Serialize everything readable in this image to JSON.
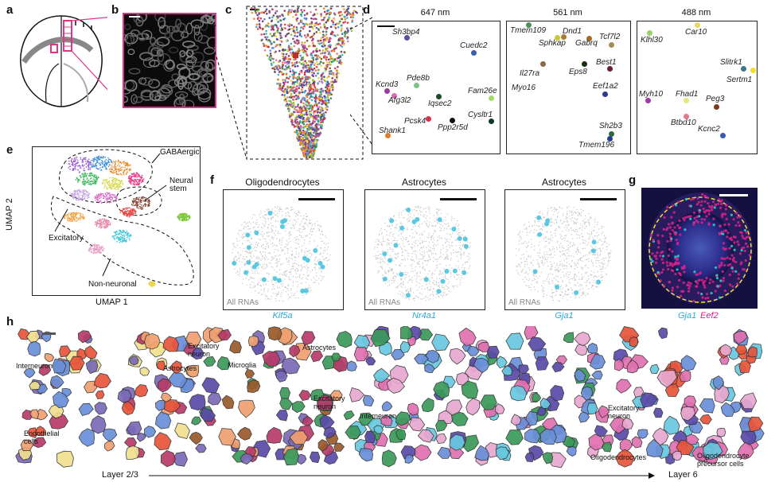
{
  "panels": {
    "a": "a",
    "b": "b",
    "c": "c",
    "d": "d",
    "e": "e",
    "f": "f",
    "g": "g",
    "h": "h"
  },
  "d": {
    "channels": [
      {
        "title": "647 nm",
        "genes": [
          {
            "name": "Sh3bp4",
            "color": "#5b4ea0"
          },
          {
            "name": "Cuedc2",
            "color": "#3b5fb0"
          },
          {
            "name": "Pde8b",
            "color": "#7cc48b"
          },
          {
            "name": "Kcnd3",
            "color": "#9a3b9c"
          },
          {
            "name": "Afg3l2",
            "color": "#d86cb2"
          },
          {
            "name": "Iqsec2",
            "color": "#1e4a2a"
          },
          {
            "name": "Fam26e",
            "color": "#a6d86a"
          },
          {
            "name": "Pcsk4",
            "color": "#d6334a"
          },
          {
            "name": "Ppp2r5d",
            "color": "#111111"
          },
          {
            "name": "Cysltr1",
            "color": "#0e3a2c"
          },
          {
            "name": "Shank1",
            "color": "#e07b2c"
          }
        ]
      },
      {
        "title": "561 nm",
        "genes": [
          {
            "name": "Tmem109",
            "color": "#4f8f5a"
          },
          {
            "name": "Dnd1",
            "color": "#b07a2c"
          },
          {
            "name": "Sphkap",
            "color": "#c6c83a"
          },
          {
            "name": "Gabrq",
            "color": "#a36a2a"
          },
          {
            "name": "Tcf7l2",
            "color": "#a38e56"
          },
          {
            "name": "Il27ra",
            "color": "#8a6a48"
          },
          {
            "name": "Eps8",
            "color": "#1a2e14"
          },
          {
            "name": "Best1",
            "color": "#6a1a3a"
          },
          {
            "name": "Myo16",
            "color": "#7a2a5a"
          },
          {
            "name": "Eef1a2",
            "color": "#2f3a8e"
          },
          {
            "name": "Sh2b3",
            "color": "#2e6a3a"
          },
          {
            "name": "Tmem196",
            "color": "#2a3a9a"
          }
        ]
      },
      {
        "title": "488 nm",
        "genes": [
          {
            "name": "Klhl30",
            "color": "#9cce6a"
          },
          {
            "name": "Car10",
            "color": "#e6d85a"
          },
          {
            "name": "Slitrk1",
            "color": "#3a7a8a"
          },
          {
            "name": "Sertm1",
            "color": "#f0e020"
          },
          {
            "name": "Myh10",
            "color": "#a03aa8"
          },
          {
            "name": "Fhad1",
            "color": "#e8e87a"
          },
          {
            "name": "Peg3",
            "color": "#7a3a1a"
          },
          {
            "name": "Btbd10",
            "color": "#e07a8a"
          },
          {
            "name": "Kcnc2",
            "color": "#3a5ab0"
          }
        ]
      }
    ]
  },
  "e": {
    "ylabel": "UMAP 2",
    "xlabel": "UMAP 1",
    "labels": {
      "gaba": "GABAergic",
      "neural_stem": "Neural\nstem",
      "excitatory": "Excitatory",
      "non_neuronal": "Non-neuronal"
    }
  },
  "f": {
    "titles": [
      "Oligodendrocytes",
      "Astrocytes",
      "Astrocytes"
    ],
    "all_rnas": "All RNAs",
    "genes": [
      "Kif5a",
      "Nr4a1",
      "Gja1"
    ]
  },
  "g": {
    "gene1": "Gja1",
    "gene2": "Eef2",
    "gene1_color": "#29a9d6",
    "gene2_color": "#d6228a"
  },
  "h": {
    "annotations": {
      "interneuron1": "Interneuron",
      "astrocytes1": "Astrocytes",
      "excitatory1": "Excitatory\nneuron",
      "microglia": "Microglia",
      "astrocytes2": "Astrocytes",
      "excitatory2": "Excitatory\nneuron",
      "endothelial": "Endothelial\ncells",
      "interneuron2": "Interneuron",
      "excitatory3": "Excitatory\nneuron",
      "oligodendrocytes": "Oligodendrocytes",
      "opc": "Oligodendrocyte\nprecursor cells"
    },
    "layer_start": "Layer 2/3",
    "layer_end": "Layer 6"
  }
}
